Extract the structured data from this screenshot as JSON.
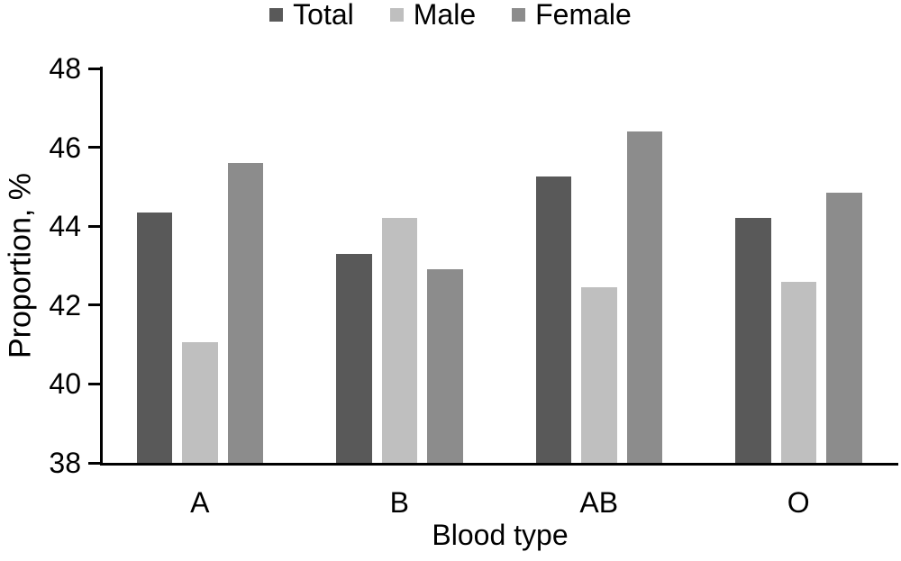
{
  "chart_data": {
    "type": "bar",
    "title": "",
    "categories": [
      "A",
      "B",
      "AB",
      "O"
    ],
    "series": [
      {
        "name": "Total",
        "color": "#595959",
        "values": [
          44.35,
          43.3,
          45.25,
          44.2
        ]
      },
      {
        "name": "Male",
        "color": "#bfbfbf",
        "values": [
          41.05,
          44.2,
          42.45,
          42.6
        ]
      },
      {
        "name": "Female",
        "color": "#8c8c8c",
        "values": [
          45.6,
          42.9,
          46.4,
          44.85
        ]
      }
    ],
    "xlabel": "Blood type",
    "ylabel": "Proportion, %",
    "ylim": [
      38,
      48
    ],
    "yticks": [
      48,
      46,
      44,
      42,
      40,
      38
    ],
    "legend_position": "top-center",
    "grid": false,
    "axis_color": "#000000",
    "background_color": "#ffffff"
  }
}
